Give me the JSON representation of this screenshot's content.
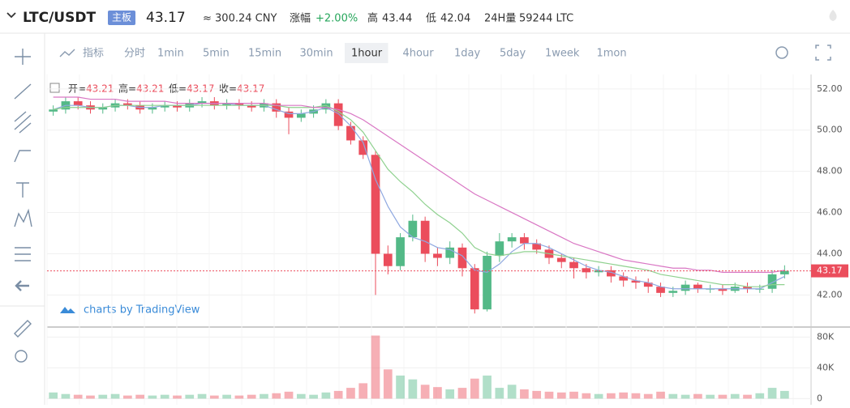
{
  "header": {
    "pair": "LTC/USDT",
    "badge": "主板",
    "price": "43.17",
    "cny": "≈ 300.24 CNY",
    "change_label": "涨幅",
    "change": "+2.00%",
    "high_label": "高",
    "high": "43.44",
    "low_label": "低",
    "low": "42.04",
    "volume_label": "24H量",
    "volume": "59244 LTC"
  },
  "toolbar": {
    "indicator": "指标",
    "intervals": [
      "分时",
      "1min",
      "5min",
      "15min",
      "30min",
      "1hour",
      "4hour",
      "1day",
      "5day",
      "1week",
      "1mon"
    ],
    "selected": "1hour"
  },
  "chart_data": {
    "type": "candlestick",
    "legend": [
      {
        "label": "开=",
        "value": "43.21"
      },
      {
        "label": "高=",
        "value": "43.21"
      },
      {
        "label": "低=",
        "value": "43.17"
      },
      {
        "label": "收=",
        "value": "43.17"
      }
    ],
    "watermark": "charts by TradingView",
    "up_color": "#53b987",
    "down_color": "#eb4d5c",
    "open": [
      50.9,
      51.0,
      51.4,
      51.2,
      51.0,
      51.1,
      51.3,
      51.2,
      51.0,
      51.1,
      51.2,
      51.1,
      51.3,
      51.4,
      51.2,
      51.3,
      51.2,
      51.1,
      51.3,
      50.9,
      50.6,
      50.8,
      51.0,
      51.3,
      50.2,
      49.5,
      48.8,
      44.0,
      43.4,
      44.8,
      45.6,
      44.0,
      43.8,
      44.3,
      43.3,
      41.3,
      43.9,
      44.6,
      44.8,
      44.5,
      44.2,
      43.8,
      43.6,
      43.3,
      43.1,
      43.2,
      42.9,
      42.7,
      42.6,
      42.4,
      42.1,
      42.2,
      42.5,
      42.3,
      42.3,
      42.2,
      42.4,
      42.3,
      42.3,
      43.0
    ],
    "high": [
      51.2,
      51.6,
      51.6,
      51.4,
      51.3,
      51.5,
      51.5,
      51.4,
      51.3,
      51.4,
      51.4,
      51.5,
      51.6,
      51.6,
      51.5,
      51.5,
      51.4,
      51.5,
      51.5,
      51.1,
      51.0,
      51.2,
      51.5,
      51.5,
      50.4,
      49.7,
      49.0,
      44.4,
      45.0,
      45.9,
      45.8,
      44.3,
      44.6,
      44.5,
      43.5,
      44.1,
      45.0,
      45.0,
      45.0,
      44.7,
      44.4,
      44.0,
      43.8,
      43.5,
      43.4,
      43.4,
      43.1,
      42.9,
      42.8,
      42.6,
      42.4,
      42.7,
      42.6,
      42.5,
      42.5,
      42.6,
      42.6,
      42.5,
      43.2,
      43.44
    ],
    "low": [
      50.7,
      50.8,
      51.0,
      50.8,
      50.8,
      50.9,
      51.0,
      50.8,
      50.8,
      50.9,
      50.9,
      50.9,
      51.1,
      51.0,
      51.0,
      51.0,
      50.9,
      50.9,
      50.6,
      49.8,
      50.4,
      50.6,
      50.8,
      50.0,
      49.3,
      48.6,
      42.0,
      43.0,
      43.2,
      44.6,
      43.6,
      43.4,
      43.5,
      42.9,
      41.1,
      41.2,
      43.6,
      44.3,
      44.2,
      44.0,
      43.5,
      43.3,
      42.8,
      42.8,
      42.9,
      42.6,
      42.4,
      42.3,
      42.1,
      41.9,
      41.9,
      42.0,
      42.1,
      42.1,
      42.0,
      42.1,
      42.1,
      42.1,
      42.1,
      42.8
    ],
    "close": [
      51.0,
      51.4,
      51.2,
      51.0,
      51.1,
      51.3,
      51.2,
      51.0,
      51.1,
      51.2,
      51.1,
      51.3,
      51.4,
      51.2,
      51.3,
      51.2,
      51.1,
      51.3,
      50.9,
      50.6,
      50.8,
      51.0,
      51.3,
      50.2,
      49.5,
      48.8,
      44.0,
      43.4,
      44.8,
      45.6,
      44.0,
      43.8,
      44.3,
      43.3,
      41.3,
      43.9,
      44.6,
      44.8,
      44.5,
      44.2,
      43.8,
      43.6,
      43.3,
      43.1,
      43.2,
      42.9,
      42.7,
      42.6,
      42.4,
      42.1,
      42.2,
      42.5,
      42.3,
      42.3,
      42.2,
      42.4,
      42.3,
      42.3,
      43.0,
      43.17
    ],
    "volume": [
      8000,
      6000,
      5000,
      4000,
      5000,
      6000,
      4000,
      5000,
      4000,
      5000,
      4000,
      5000,
      6000,
      4000,
      5000,
      4000,
      5000,
      6000,
      7000,
      9000,
      6000,
      5000,
      8000,
      10000,
      14000,
      20000,
      82000,
      38000,
      30000,
      25000,
      18000,
      15000,
      12000,
      14000,
      26000,
      30000,
      14000,
      18000,
      12000,
      10000,
      9000,
      8000,
      9000,
      7000,
      6000,
      7000,
      8000,
      7000,
      6000,
      9000,
      6000,
      5000,
      6000,
      5000,
      5000,
      6000,
      5000,
      7000,
      14000,
      10000
    ],
    "series": [
      {
        "color": "#8fa8e0",
        "values": [
          51.0,
          51.2,
          51.2,
          51.1,
          51.1,
          51.2,
          51.2,
          51.1,
          51.1,
          51.2,
          51.2,
          51.2,
          51.3,
          51.3,
          51.3,
          51.2,
          51.2,
          51.2,
          51.0,
          50.8,
          50.8,
          50.9,
          51.1,
          50.8,
          50.2,
          49.4,
          47.6,
          46.3,
          45.3,
          44.8,
          44.6,
          44.3,
          44.2,
          43.9,
          43.2,
          43.1,
          43.5,
          44.1,
          44.5,
          44.5,
          44.3,
          44.0,
          43.7,
          43.4,
          43.2,
          43.1,
          42.9,
          42.7,
          42.6,
          42.4,
          42.3,
          42.3,
          42.3,
          42.3,
          42.3,
          42.3,
          42.3,
          42.3,
          42.6,
          42.9
        ]
      },
      {
        "color": "#8fd18f",
        "values": [
          51.0,
          51.1,
          51.1,
          51.1,
          51.1,
          51.2,
          51.2,
          51.2,
          51.2,
          51.2,
          51.2,
          51.2,
          51.2,
          51.2,
          51.2,
          51.2,
          51.2,
          51.2,
          51.2,
          51.1,
          51.1,
          51.1,
          51.2,
          50.9,
          50.5,
          49.9,
          49.0,
          48.1,
          47.5,
          47.0,
          46.4,
          45.9,
          45.5,
          45.0,
          44.3,
          44.0,
          43.9,
          44.0,
          44.1,
          44.1,
          44.0,
          43.9,
          43.8,
          43.7,
          43.6,
          43.5,
          43.4,
          43.3,
          43.2,
          43.0,
          42.9,
          42.8,
          42.7,
          42.6,
          42.5,
          42.5,
          42.4,
          42.4,
          42.5,
          42.5
        ]
      },
      {
        "color": "#d977c4",
        "values": [
          51.6,
          51.6,
          51.6,
          51.5,
          51.5,
          51.5,
          51.4,
          51.4,
          51.4,
          51.4,
          51.3,
          51.3,
          51.3,
          51.3,
          51.3,
          51.3,
          51.3,
          51.3,
          51.2,
          51.2,
          51.2,
          51.1,
          51.1,
          51.0,
          50.8,
          50.5,
          50.1,
          49.7,
          49.3,
          48.9,
          48.5,
          48.1,
          47.7,
          47.3,
          46.9,
          46.6,
          46.3,
          46.0,
          45.7,
          45.4,
          45.1,
          44.8,
          44.5,
          44.3,
          44.1,
          43.9,
          43.7,
          43.6,
          43.5,
          43.4,
          43.3,
          43.3,
          43.2,
          43.2,
          43.1,
          43.1,
          43.1,
          43.1,
          43.1,
          43.2
        ]
      }
    ],
    "last_price": 43.17,
    "ylim": [
      40.6,
      52.7
    ],
    "yticks": [
      {
        "value": 42,
        "label": "42.00"
      },
      {
        "value": 44,
        "label": "44.00"
      },
      {
        "value": 46,
        "label": "46.00"
      },
      {
        "value": 48,
        "label": "48.00"
      },
      {
        "value": 50,
        "label": "50.00"
      },
      {
        "value": 52,
        "label": "52.00"
      }
    ],
    "vlim": [
      -8000,
      92000
    ],
    "vticks": [
      0,
      {
        "value": 40000,
        "label": "40K"
      },
      {
        "value": 80000,
        "label": "80K"
      }
    ],
    "grid": true
  }
}
